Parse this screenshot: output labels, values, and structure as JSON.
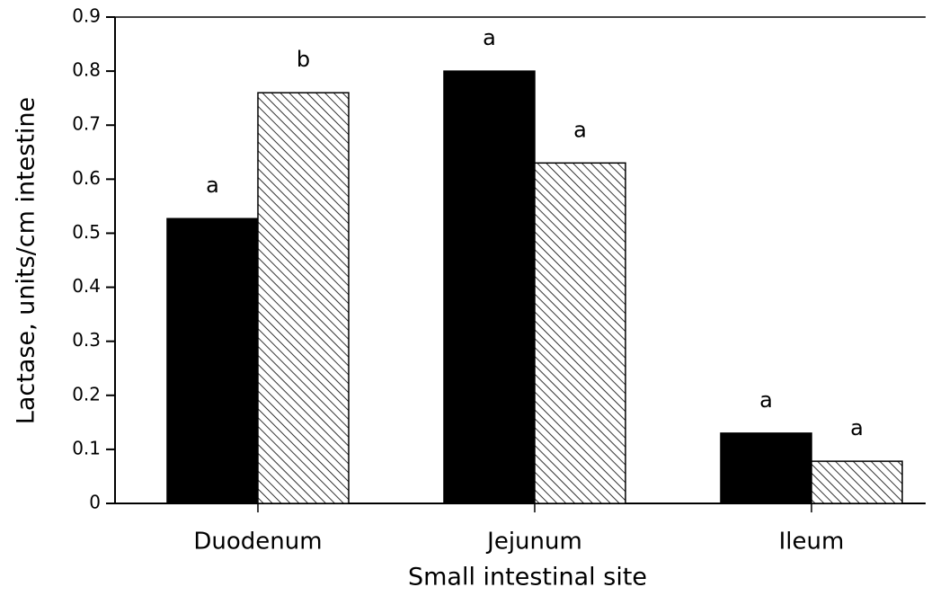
{
  "chart_data": {
    "type": "bar",
    "x_label": "Small intestinal site",
    "y_label": "Lactase, units/cm intestine",
    "categories": [
      "Duodenum",
      "Jejunum",
      "Ileum"
    ],
    "series": [
      {
        "color": "#000000",
        "pattern": "solid",
        "values": [
          0.527,
          0.8,
          0.13
        ],
        "letters": [
          "a",
          "a",
          "a"
        ]
      },
      {
        "color": "#000000",
        "pattern": "hatch",
        "values": [
          0.76,
          0.63,
          0.078
        ],
        "letters": [
          "b",
          "a",
          "a"
        ]
      }
    ],
    "ylim": [
      0,
      0.9
    ],
    "yticks": [
      0,
      0.1,
      0.2,
      0.3,
      0.4,
      0.5,
      0.6,
      0.7,
      0.8,
      0.9
    ],
    "grid": false
  }
}
